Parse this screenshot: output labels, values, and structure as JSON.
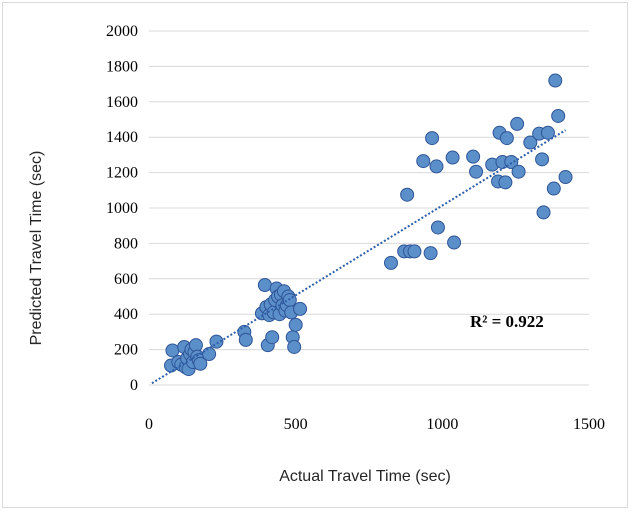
{
  "chart_data": {
    "type": "scatter",
    "title": "",
    "xlabel": "Actual Travel Time (sec)",
    "ylabel": "Predicted Travel Time (sec)",
    "xlim": [
      0,
      1500
    ],
    "ylim": [
      0,
      2000
    ],
    "x_ticks": [
      "0",
      "500",
      "1000",
      "1500"
    ],
    "y_ticks": [
      "0",
      "200",
      "400",
      "600",
      "800",
      "1000",
      "1200",
      "1400",
      "1600",
      "1800",
      "2000"
    ],
    "grid": "horizontal",
    "legend": "none",
    "annotation": "R² = 0.922",
    "marker_color": "#5b8fc9",
    "marker_edge_color": "#2f5597",
    "trendline_color": "#2e5eaa",
    "trendline": {
      "x": [
        10,
        1420
      ],
      "y": [
        10,
        1440
      ]
    },
    "series": [
      {
        "x": [
          75,
          80,
          100,
          110,
          120,
          125,
          130,
          135,
          140,
          145,
          150,
          155,
          160,
          165,
          170,
          175,
          205,
          230,
          325,
          330,
          385,
          395,
          400,
          405,
          410,
          415,
          420,
          425,
          430,
          435,
          440,
          445,
          450,
          455,
          460,
          465,
          470,
          475,
          480,
          485,
          490,
          495,
          500,
          515,
          825,
          870,
          880,
          890,
          905,
          935,
          960,
          965,
          980,
          985,
          1035,
          1040,
          1105,
          1115,
          1170,
          1190,
          1195,
          1205,
          1215,
          1220,
          1235,
          1255,
          1260,
          1300,
          1330,
          1340,
          1345,
          1360,
          1380,
          1385,
          1395,
          1420
        ],
        "y": [
          110,
          195,
          130,
          115,
          215,
          100,
          150,
          90,
          175,
          200,
          130,
          185,
          225,
          160,
          140,
          120,
          175,
          245,
          300,
          255,
          405,
          565,
          440,
          225,
          395,
          455,
          270,
          410,
          480,
          545,
          500,
          400,
          510,
          450,
          530,
          420,
          450,
          500,
          480,
          410,
          270,
          215,
          340,
          430,
          690,
          755,
          1075,
          755,
          755,
          1265,
          745,
          1395,
          1235,
          890,
          1285,
          805,
          1290,
          1205,
          1245,
          1150,
          1425,
          1260,
          1145,
          1395,
          1260,
          1475,
          1205,
          1370,
          1420,
          1275,
          975,
          1425,
          1110,
          1720,
          1520,
          1175
        ]
      }
    ]
  }
}
